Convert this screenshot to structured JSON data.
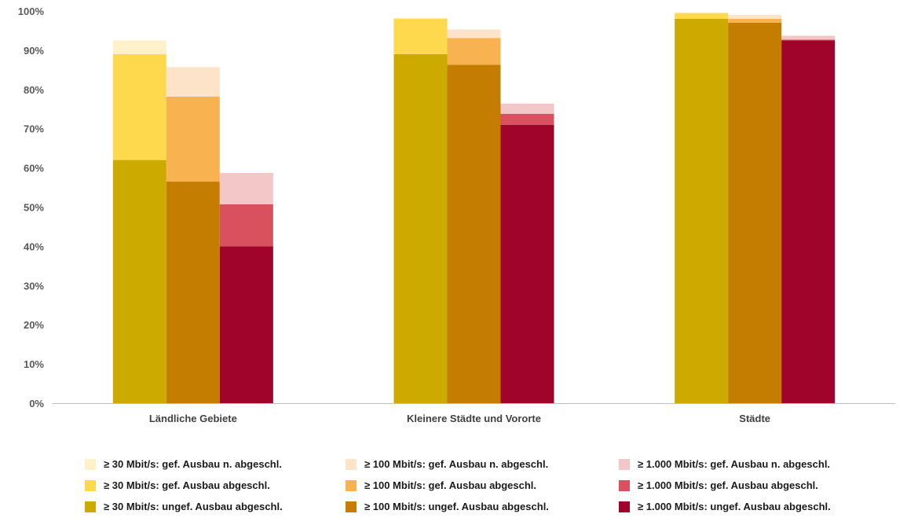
{
  "chart_data": {
    "type": "bar",
    "stacked": true,
    "categories": [
      "Ländliche Gebiete",
      "Kleinere Städte und Vororte",
      "Städte"
    ],
    "y_ticks": [
      "0%",
      "10%",
      "20%",
      "30%",
      "40%",
      "50%",
      "60%",
      "70%",
      "80%",
      "90%",
      "100%"
    ],
    "ylim": [
      0,
      100
    ],
    "grid": false,
    "legend_position": "bottom",
    "groups": [
      {
        "layers": [
          {
            "name": "≥ 30 Mbit/s: ungef. Ausbau abgeschl.",
            "color": "#CCAA00",
            "values": [
              62,
              89,
              98
            ]
          },
          {
            "name": "≥ 30 Mbit/s: gef. Ausbau abgeschl.",
            "color": "#FFD94D",
            "values": [
              27,
              9,
              1.5
            ]
          },
          {
            "name": "≥ 30 Mbit/s: gef. Ausbau n. abgeschl.",
            "color": "#FFF1C9",
            "values": [
              3.5,
              0.3,
              0
            ]
          }
        ]
      },
      {
        "layers": [
          {
            "name": "≥ 100 Mbit/s: ungef. Ausbau abgeschl.",
            "color": "#C47D00",
            "values": [
              56.5,
              86.3,
              97
            ]
          },
          {
            "name": "≥ 100 Mbit/s: gef. Ausbau abgeschl.",
            "color": "#F9B250",
            "values": [
              21.7,
              6.8,
              1
            ]
          },
          {
            "name": "≥ 100 Mbit/s: gef. Ausbau n. abgeschl.",
            "color": "#FDE3C8",
            "values": [
              7.5,
              2.2,
              1
            ]
          }
        ]
      },
      {
        "layers": [
          {
            "name": "≥ 1.000 Mbit/s: ungef. Ausbau abgeschl.",
            "color": "#A0042A",
            "values": [
              40,
              71,
              92.5
            ]
          },
          {
            "name": "≥ 1.000 Mbit/s: gef. Ausbau abgeschl.",
            "color": "#D9515E",
            "values": [
              10.7,
              2.8,
              0.2
            ]
          },
          {
            "name": "≥ 1.000 Mbit/s: gef. Ausbau n. abgeschl.",
            "color": "#F3C6C8",
            "values": [
              8,
              2.6,
              1
            ]
          }
        ]
      }
    ],
    "legend": [
      {
        "label": "≥ 30 Mbit/s: gef. Ausbau n. abgeschl.",
        "color": "#FFF1C9"
      },
      {
        "label": "≥ 100 Mbit/s: gef. Ausbau n. abgeschl.",
        "color": "#FDE3C8"
      },
      {
        "label": "≥ 1.000 Mbit/s: gef. Ausbau n. abgeschl.",
        "color": "#F3C6C8"
      },
      {
        "label": "≥ 30 Mbit/s: gef. Ausbau abgeschl.",
        "color": "#FFD94D"
      },
      {
        "label": "≥ 100 Mbit/s: gef. Ausbau abgeschl.",
        "color": "#F9B250"
      },
      {
        "label": "≥ 1.000 Mbit/s: gef. Ausbau abgeschl.",
        "color": "#D9515E"
      },
      {
        "label": "≥ 30 Mbit/s: ungef. Ausbau abgeschl.",
        "color": "#CCAA00"
      },
      {
        "label": "≥ 100 Mbit/s: ungef. Ausbau abgeschl.",
        "color": "#C47D00"
      },
      {
        "label": "≥ 1.000 Mbit/s: ungef. Ausbau abgeschl.",
        "color": "#A0042A"
      }
    ]
  }
}
